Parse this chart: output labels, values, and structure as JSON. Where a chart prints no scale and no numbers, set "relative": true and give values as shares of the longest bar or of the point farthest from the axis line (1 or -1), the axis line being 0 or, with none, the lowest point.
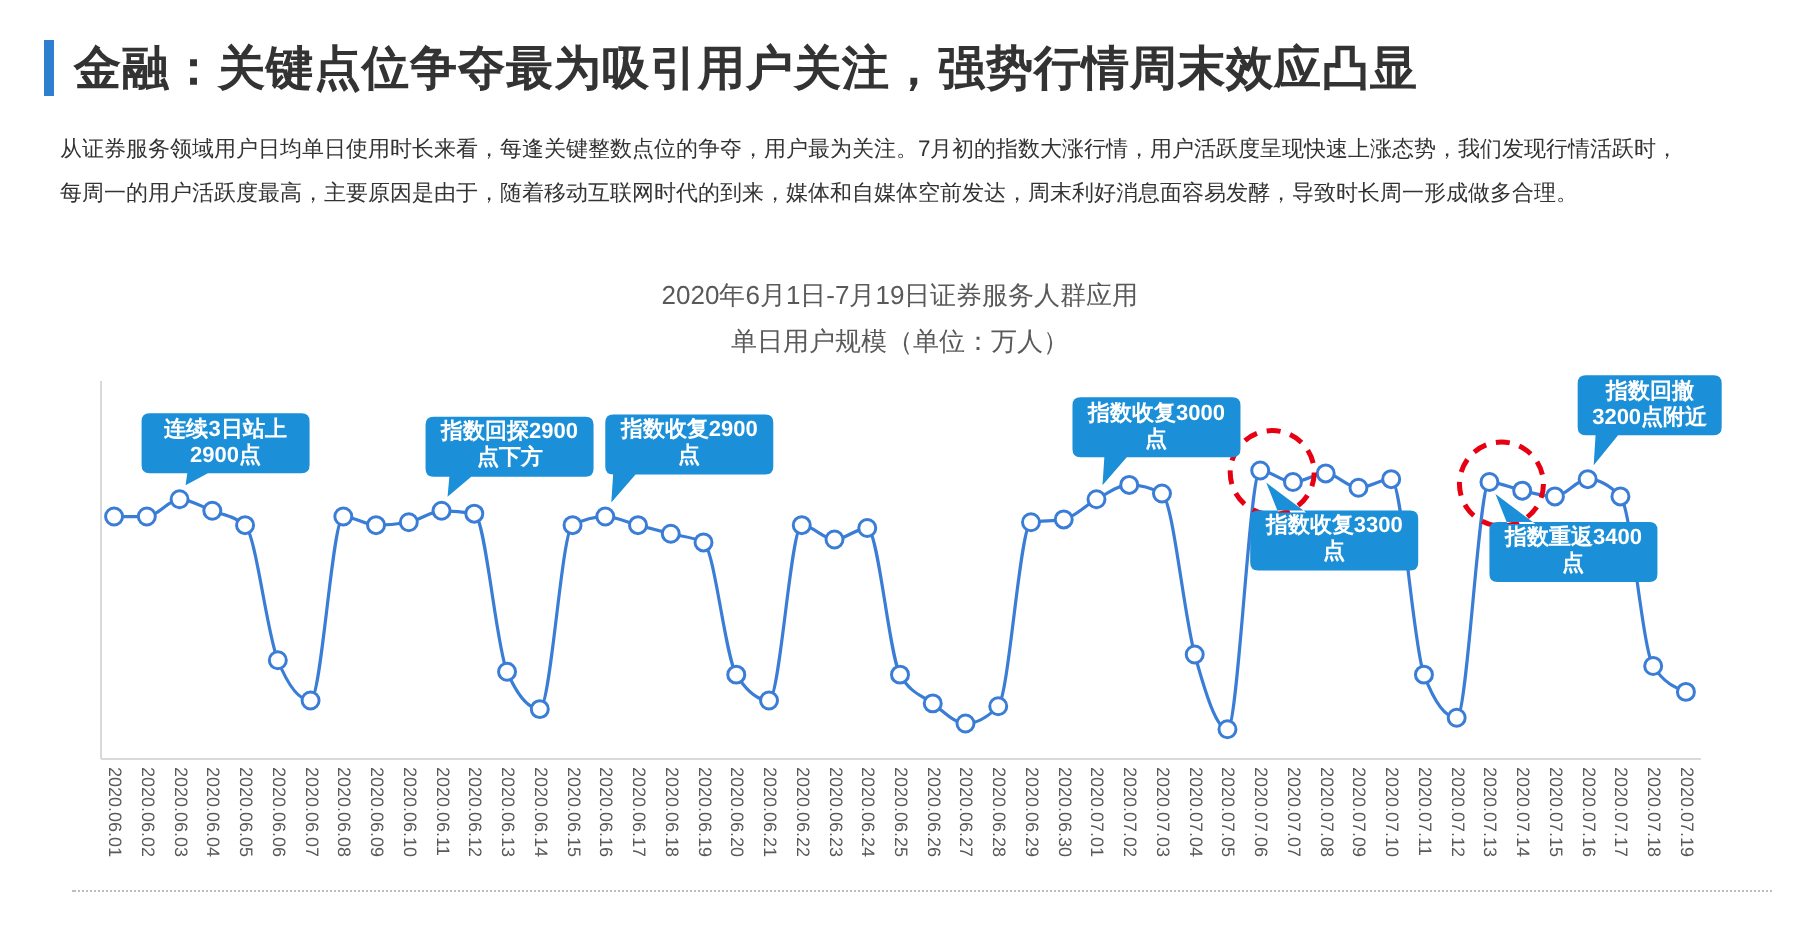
{
  "chart_data": {
    "type": "line",
    "title": "2020年6月1日-7月19日证券服务人群应用",
    "subtitle": "单日用户规模（单位：万人）",
    "categories": [
      "2020.06.01",
      "2020.06.02",
      "2020.06.03",
      "2020.06.04",
      "2020.06.05",
      "2020.06.06",
      "2020.06.07",
      "2020.06.08",
      "2020.06.09",
      "2020.06.10",
      "2020.06.11",
      "2020.06.12",
      "2020.06.13",
      "2020.06.14",
      "2020.06.15",
      "2020.06.16",
      "2020.06.17",
      "2020.06.18",
      "2020.06.19",
      "2020.06.20",
      "2020.06.21",
      "2020.06.22",
      "2020.06.23",
      "2020.06.24",
      "2020.06.25",
      "2020.06.26",
      "2020.06.27",
      "2020.06.28",
      "2020.06.29",
      "2020.06.30",
      "2020.07.01",
      "2020.07.02",
      "2020.07.03",
      "2020.07.04",
      "2020.07.05",
      "2020.07.06",
      "2020.07.07",
      "2020.07.08",
      "2020.07.09",
      "2020.07.10",
      "2020.07.11",
      "2020.07.12",
      "2020.07.13",
      "2020.07.14",
      "2020.07.15",
      "2020.07.16",
      "2020.07.17",
      "2020.07.18",
      "2020.07.19"
    ],
    "values": [
      0.84,
      0.84,
      0.9,
      0.86,
      0.81,
      0.34,
      0.2,
      0.84,
      0.81,
      0.82,
      0.86,
      0.85,
      0.3,
      0.17,
      0.81,
      0.84,
      0.81,
      0.78,
      0.75,
      0.29,
      0.2,
      0.81,
      0.76,
      0.8,
      0.29,
      0.19,
      0.12,
      0.18,
      0.82,
      0.83,
      0.9,
      0.95,
      0.92,
      0.36,
      0.1,
      1,
      0.96,
      0.99,
      0.94,
      0.97,
      0.29,
      0.14,
      0.96,
      0.93,
      0.91,
      0.97,
      0.91,
      0.32,
      0.23
    ],
    "color": "#3a7dd6",
    "relative": true,
    "marker": "circle",
    "annotations": [
      "金融：关键点位争夺最为吸引用户关注，强势行情周末效应凸显",
      "从证券服务领域用户日均单日使用时长来看，每逢关键整数点位的争夺，用户最为关注。7月初的指数大涨行情，用户活跃度呈现快速上涨态势，我们发现行情活跃时，每周一的用户活跃度最高，主要原因是由于，随着移动互联网时代的到来，媒体和自媒体空前发达，周末利好消息面容易发酵，导致时长周一形成做多合理。",
      {
        "text": "连续3日站上2900点",
        "x": "2020.06.03",
        "y": 0.9
      },
      {
        "text": "指数回探2900点下方",
        "x": "2020.06.11",
        "y": 0.86
      },
      {
        "text": "指数收复2900点",
        "x": "2020.06.16",
        "y": 0.84
      },
      {
        "text": "指数收复3000点",
        "x": "2020.07.01",
        "y": 0.9
      },
      {
        "text": "指数收复3300点",
        "x": "2020.07.06",
        "y": 1
      },
      {
        "text": "指数重返3400点",
        "x": "2020.07.13",
        "y": 0.96
      },
      {
        "text": "指数回撤3200点附近",
        "x": "2020.07.16",
        "y": 0.97
      }
    ]
  }
}
